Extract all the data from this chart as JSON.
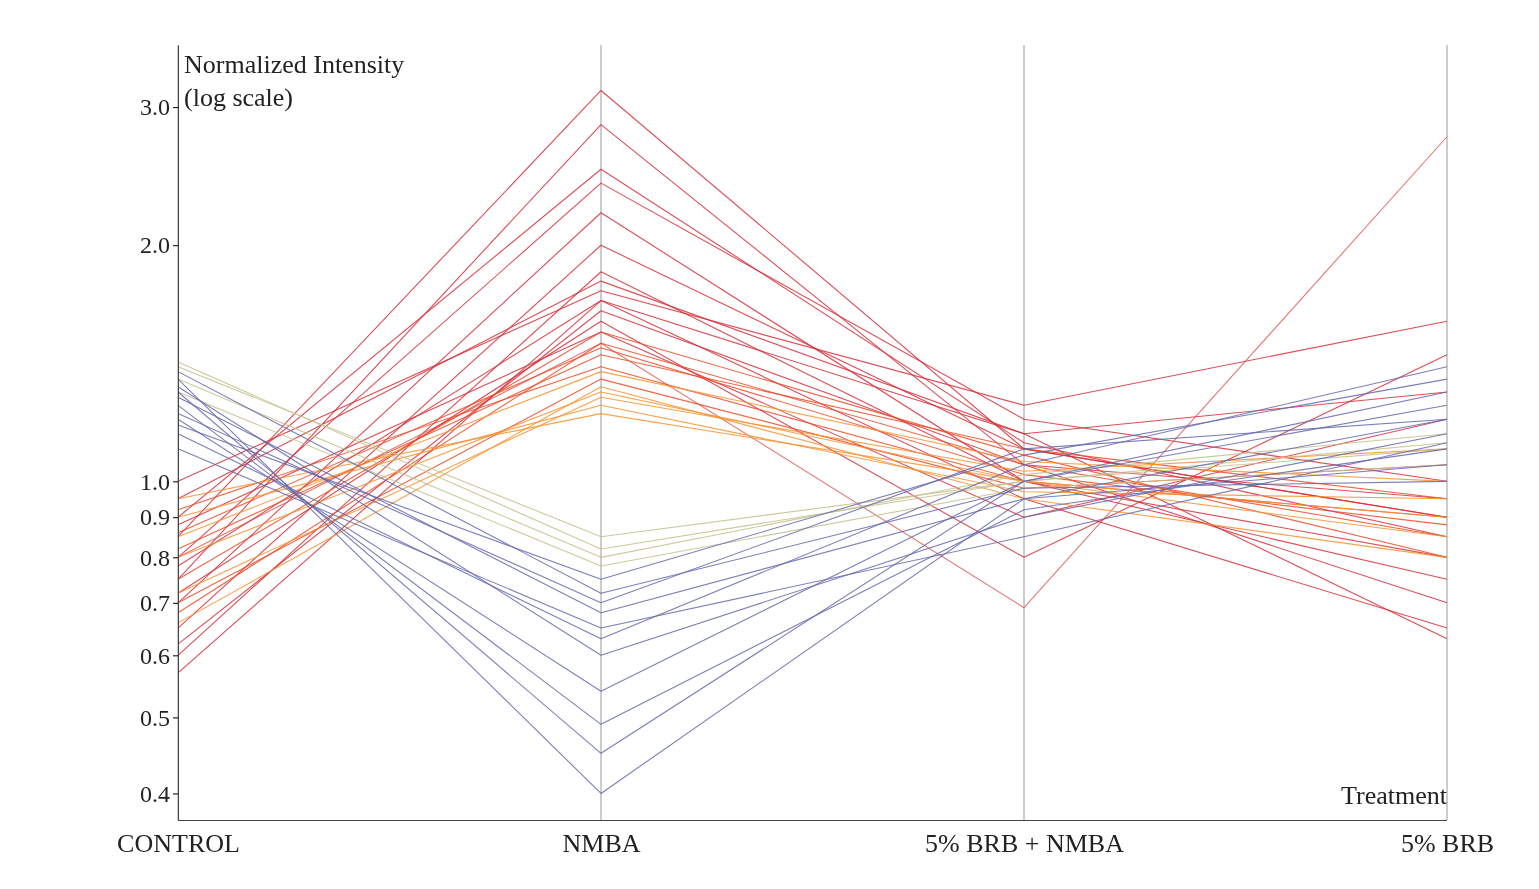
{
  "chart_data": {
    "type": "line",
    "ylabel": "Normalized Intensity\n(log scale)",
    "xlabel": "Treatment",
    "log": "y",
    "grid": "x",
    "marker": "none",
    "categories": [
      "CONTROL",
      "NMBA",
      "5% BRB + NMBA",
      "5% BRB"
    ],
    "ylim": [
      0.37,
      3.6
    ],
    "yticks": [
      0.4,
      0.5,
      0.6,
      0.7,
      0.8,
      0.9,
      {
        "value": 1,
        "label": "1.0"
      },
      {
        "value": 2,
        "label": "2.0"
      },
      {
        "value": 3,
        "label": "3.0"
      }
    ],
    "series": [
      {
        "color": "#d62f3a",
        "values": [
          0.85,
          3.15,
          1.1,
          0.9
        ]
      },
      {
        "color": "#d62f3a",
        "values": [
          0.75,
          2.85,
          1.05,
          0.95
        ]
      },
      {
        "color": "#d62f3a",
        "values": [
          0.9,
          2.5,
          1.12,
          0.85
        ]
      },
      {
        "color": "#d62f3a",
        "values": [
          0.8,
          2.4,
          1.2,
          1.0
        ]
      },
      {
        "color": "#d62f3a",
        "values": [
          0.7,
          2.2,
          1.0,
          0.8
        ]
      },
      {
        "color": "#d62f3a",
        "values": [
          0.65,
          2.0,
          1.1,
          0.9
        ]
      },
      {
        "color": "#d62f3a",
        "values": [
          0.6,
          1.85,
          1.0,
          0.75
        ]
      },
      {
        "color": "#d62f3a",
        "values": [
          1.0,
          1.75,
          1.25,
          1.6
        ]
      },
      {
        "color": "#e0625a",
        "values": [
          0.8,
          1.5,
          0.69,
          2.75
        ]
      },
      {
        "color": "#d62f3a",
        "values": [
          0.57,
          1.7,
          0.95,
          0.65
        ]
      },
      {
        "color": "#d62f3a",
        "values": [
          0.62,
          1.65,
          1.05,
          0.7
        ]
      },
      {
        "color": "#d62f3a",
        "values": [
          0.72,
          1.6,
          0.8,
          1.45
        ]
      },
      {
        "color": "#d62f3a",
        "values": [
          0.95,
          1.8,
          1.15,
          1.3
        ]
      },
      {
        "color": "#d62f3a",
        "values": [
          0.88,
          1.55,
          0.9,
          1.2
        ]
      },
      {
        "color": "#d62f3a",
        "values": [
          0.78,
          1.7,
          1.15,
          0.63
        ]
      },
      {
        "color": "#ee4a26",
        "values": [
          0.68,
          1.5,
          1.05,
          0.85
        ]
      },
      {
        "color": "#ee4a26",
        "values": [
          0.82,
          1.45,
          1.1,
          0.95
        ]
      },
      {
        "color": "#ee4a26",
        "values": [
          0.92,
          1.4,
          1.0,
          0.9
        ]
      },
      {
        "color": "#ee4a26",
        "values": [
          0.75,
          1.55,
          1.08,
          0.8
        ]
      },
      {
        "color": "#ee4a26",
        "values": [
          0.7,
          1.35,
          0.98,
          1.05
        ]
      },
      {
        "color": "#ee4a26",
        "values": [
          0.86,
          1.48,
          1.02,
          0.88
        ]
      },
      {
        "color": "#f7922f",
        "values": [
          0.8,
          1.3,
          1.0,
          0.9
        ]
      },
      {
        "color": "#f7922f",
        "values": [
          0.9,
          1.25,
          0.97,
          0.95
        ]
      },
      {
        "color": "#f7922f",
        "values": [
          0.72,
          1.28,
          1.03,
          1.1
        ]
      },
      {
        "color": "#f7922f",
        "values": [
          0.95,
          1.22,
          1.0,
          0.85
        ]
      },
      {
        "color": "#f7922f",
        "values": [
          0.66,
          1.32,
          0.95,
          0.8
        ]
      },
      {
        "color": "#f7922f",
        "values": [
          0.85,
          1.38,
          1.06,
          1.0
        ]
      },
      {
        "color": "#c4c08c",
        "values": [
          1.4,
          0.85,
          1.0,
          1.1
        ]
      },
      {
        "color": "#c4c08c",
        "values": [
          1.35,
          0.8,
          1.02,
          1.15
        ]
      },
      {
        "color": "#c4c08c",
        "values": [
          1.3,
          0.78,
          0.98,
          1.05
        ]
      },
      {
        "color": "#c4c08c",
        "values": [
          1.42,
          0.82,
          1.0,
          1.12
        ]
      },
      {
        "color": "#6467ad",
        "values": [
          1.35,
          0.4,
          0.95,
          1.2
        ]
      },
      {
        "color": "#6467ad",
        "values": [
          1.3,
          0.45,
          1.0,
          1.3
        ]
      },
      {
        "color": "#6467ad",
        "values": [
          1.25,
          0.49,
          0.92,
          1.1
        ]
      },
      {
        "color": "#6467ad",
        "values": [
          1.2,
          0.54,
          1.0,
          1.25
        ]
      },
      {
        "color": "#6467ad",
        "values": [
          1.32,
          0.6,
          0.9,
          1.15
        ]
      },
      {
        "color": "#6467ad",
        "values": [
          1.15,
          0.63,
          1.05,
          1.4
        ]
      },
      {
        "color": "#6467ad",
        "values": [
          1.28,
          0.68,
          0.95,
          1.05
        ]
      },
      {
        "color": "#6467ad",
        "values": [
          1.22,
          0.7,
          1.1,
          1.2
        ]
      },
      {
        "color": "#6467ad",
        "values": [
          1.38,
          0.72,
          0.98,
          1.0
        ]
      },
      {
        "color": "#6467ad",
        "values": [
          1.18,
          0.75,
          1.08,
          1.35
        ]
      },
      {
        "color": "#6467ad",
        "values": [
          1.1,
          0.65,
          0.85,
          1.12
        ]
      }
    ]
  }
}
